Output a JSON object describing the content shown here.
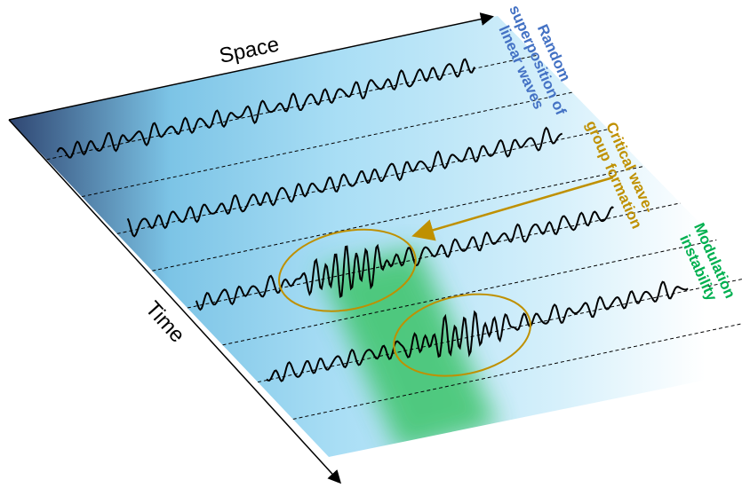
{
  "labels": {
    "space": "Space",
    "time": "Time",
    "random": [
      "Random",
      "superposition of",
      "linear waves"
    ],
    "critical": [
      "Critical wave-",
      "group formation"
    ],
    "modulation": [
      "Modulation",
      "instability"
    ]
  }
}
